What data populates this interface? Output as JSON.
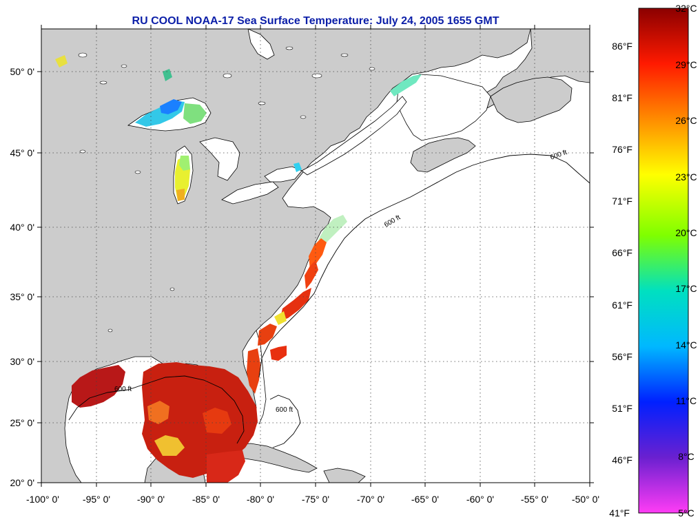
{
  "title": "RU COOL  NOAA-17  Sea Surface Temperature:  July 24, 2005 1655 GMT",
  "map": {
    "lon_range": [
      -100,
      -50
    ],
    "lat_range": [
      20,
      52.4
    ],
    "lon_ticks": [
      "-100° 0'",
      "-95° 0'",
      "-90° 0'",
      "-85° 0'",
      "-80° 0'",
      "-75° 0'",
      "-70° 0'",
      "-65° 0'",
      "-60° 0'",
      "-55° 0'",
      "-50° 0'"
    ],
    "lat_ticks": [
      "20° 0'",
      "25° 0'",
      "30° 0'",
      "35° 0'",
      "40° 0'",
      "45° 0'",
      "50° 0'"
    ],
    "grid": "dotted",
    "land_color": "#cccccc",
    "no_data_color": "#ffffff",
    "contour_label": "600 ft"
  },
  "colorbar": {
    "celsius_labels": [
      "32°C",
      "29°C",
      "26°C",
      "23°C",
      "20°C",
      "17°C",
      "14°C",
      "11°C",
      "8°C",
      "5°C"
    ],
    "fahrenheit_labels": [
      "86°F",
      "81°F",
      "76°F",
      "71°F",
      "66°F",
      "61°F",
      "56°F",
      "51°F",
      "46°F",
      "41°F"
    ],
    "stops": [
      "#8b0000",
      "#ff2000",
      "#ff8c00",
      "#ffff00",
      "#7fff00",
      "#00e0c0",
      "#00b0ff",
      "#0000ff",
      "#7000c0",
      "#ff40ff"
    ]
  }
}
